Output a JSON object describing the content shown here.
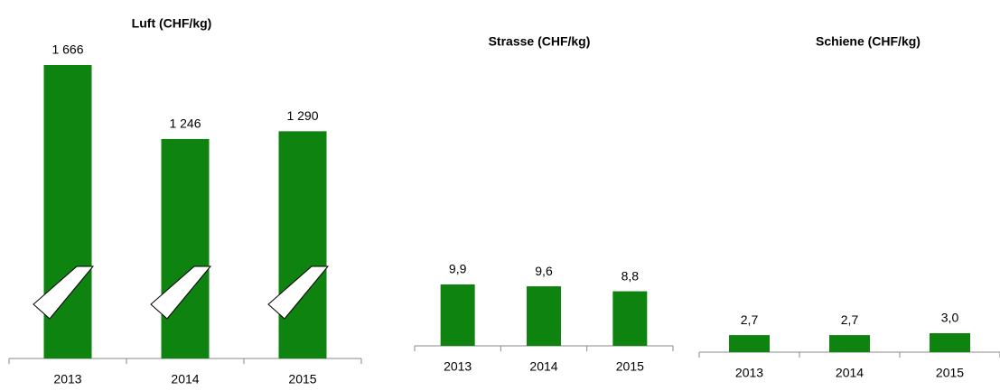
{
  "chart_data": [
    {
      "type": "bar",
      "title": "Luft (CHF/kg)",
      "categories": [
        "2013",
        "2014",
        "2015"
      ],
      "values": [
        1666,
        1246,
        1290
      ],
      "value_labels": [
        "1 666",
        "1 246",
        "1 290"
      ],
      "color": "#0f830f"
    },
    {
      "type": "bar",
      "title": "Strasse (CHF/kg)",
      "categories": [
        "2013",
        "2014",
        "2015"
      ],
      "values": [
        9.9,
        9.6,
        8.8
      ],
      "value_labels": [
        "9,9",
        "9,6",
        "8,8"
      ],
      "color": "#0f830f"
    },
    {
      "type": "bar",
      "title": "Schiene (CHF/kg)",
      "categories": [
        "2013",
        "2014",
        "2015"
      ],
      "values": [
        2.7,
        2.7,
        3.0
      ],
      "value_labels": [
        "2,7",
        "2,7",
        "3,0"
      ],
      "color": "#0f830f"
    }
  ]
}
